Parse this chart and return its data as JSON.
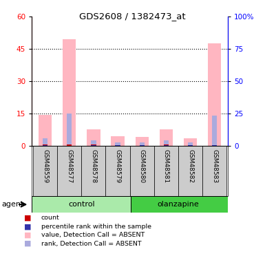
{
  "title": "GDS2608 / 1382473_at",
  "samples": [
    "GSM48559",
    "GSM48577",
    "GSM48578",
    "GSM48579",
    "GSM48580",
    "GSM48581",
    "GSM48582",
    "GSM48583"
  ],
  "pink_values": [
    14.5,
    49.5,
    7.5,
    4.5,
    4.0,
    7.5,
    3.5,
    47.5
  ],
  "blue_values": [
    3.5,
    15.0,
    2.5,
    1.5,
    1.5,
    2.5,
    1.5,
    14.0
  ],
  "red_values": [
    0.6,
    0.6,
    0.5,
    0.4,
    0.4,
    0.5,
    0.4,
    0.4
  ],
  "dark_blue_values": [
    0.25,
    0.1,
    0.15,
    0.15,
    0.15,
    0.15,
    0.15,
    0.15
  ],
  "ylim_left": [
    0,
    60
  ],
  "ylim_right": [
    0,
    100
  ],
  "yticks_left": [
    0,
    15,
    30,
    45,
    60
  ],
  "yticks_right": [
    0,
    25,
    50,
    75,
    100
  ],
  "yticklabels_right": [
    "0",
    "25",
    "50",
    "75",
    "100%"
  ],
  "pink_bar_color": "#FFB6C1",
  "blue_bar_color": "#AAAADD",
  "red_bar_color": "#CC0000",
  "dark_blue_bar_color": "#3333AA",
  "sample_bg_color": "#CCCCCC",
  "control_bg": "#AAEAAA",
  "olanzapine_bg": "#44CC44",
  "legend_items": [
    {
      "color": "#CC0000",
      "label": "count"
    },
    {
      "color": "#3333AA",
      "label": "percentile rank within the sample"
    },
    {
      "color": "#FFB6C1",
      "label": "value, Detection Call = ABSENT"
    },
    {
      "color": "#AAAADD",
      "label": "rank, Detection Call = ABSENT"
    }
  ]
}
